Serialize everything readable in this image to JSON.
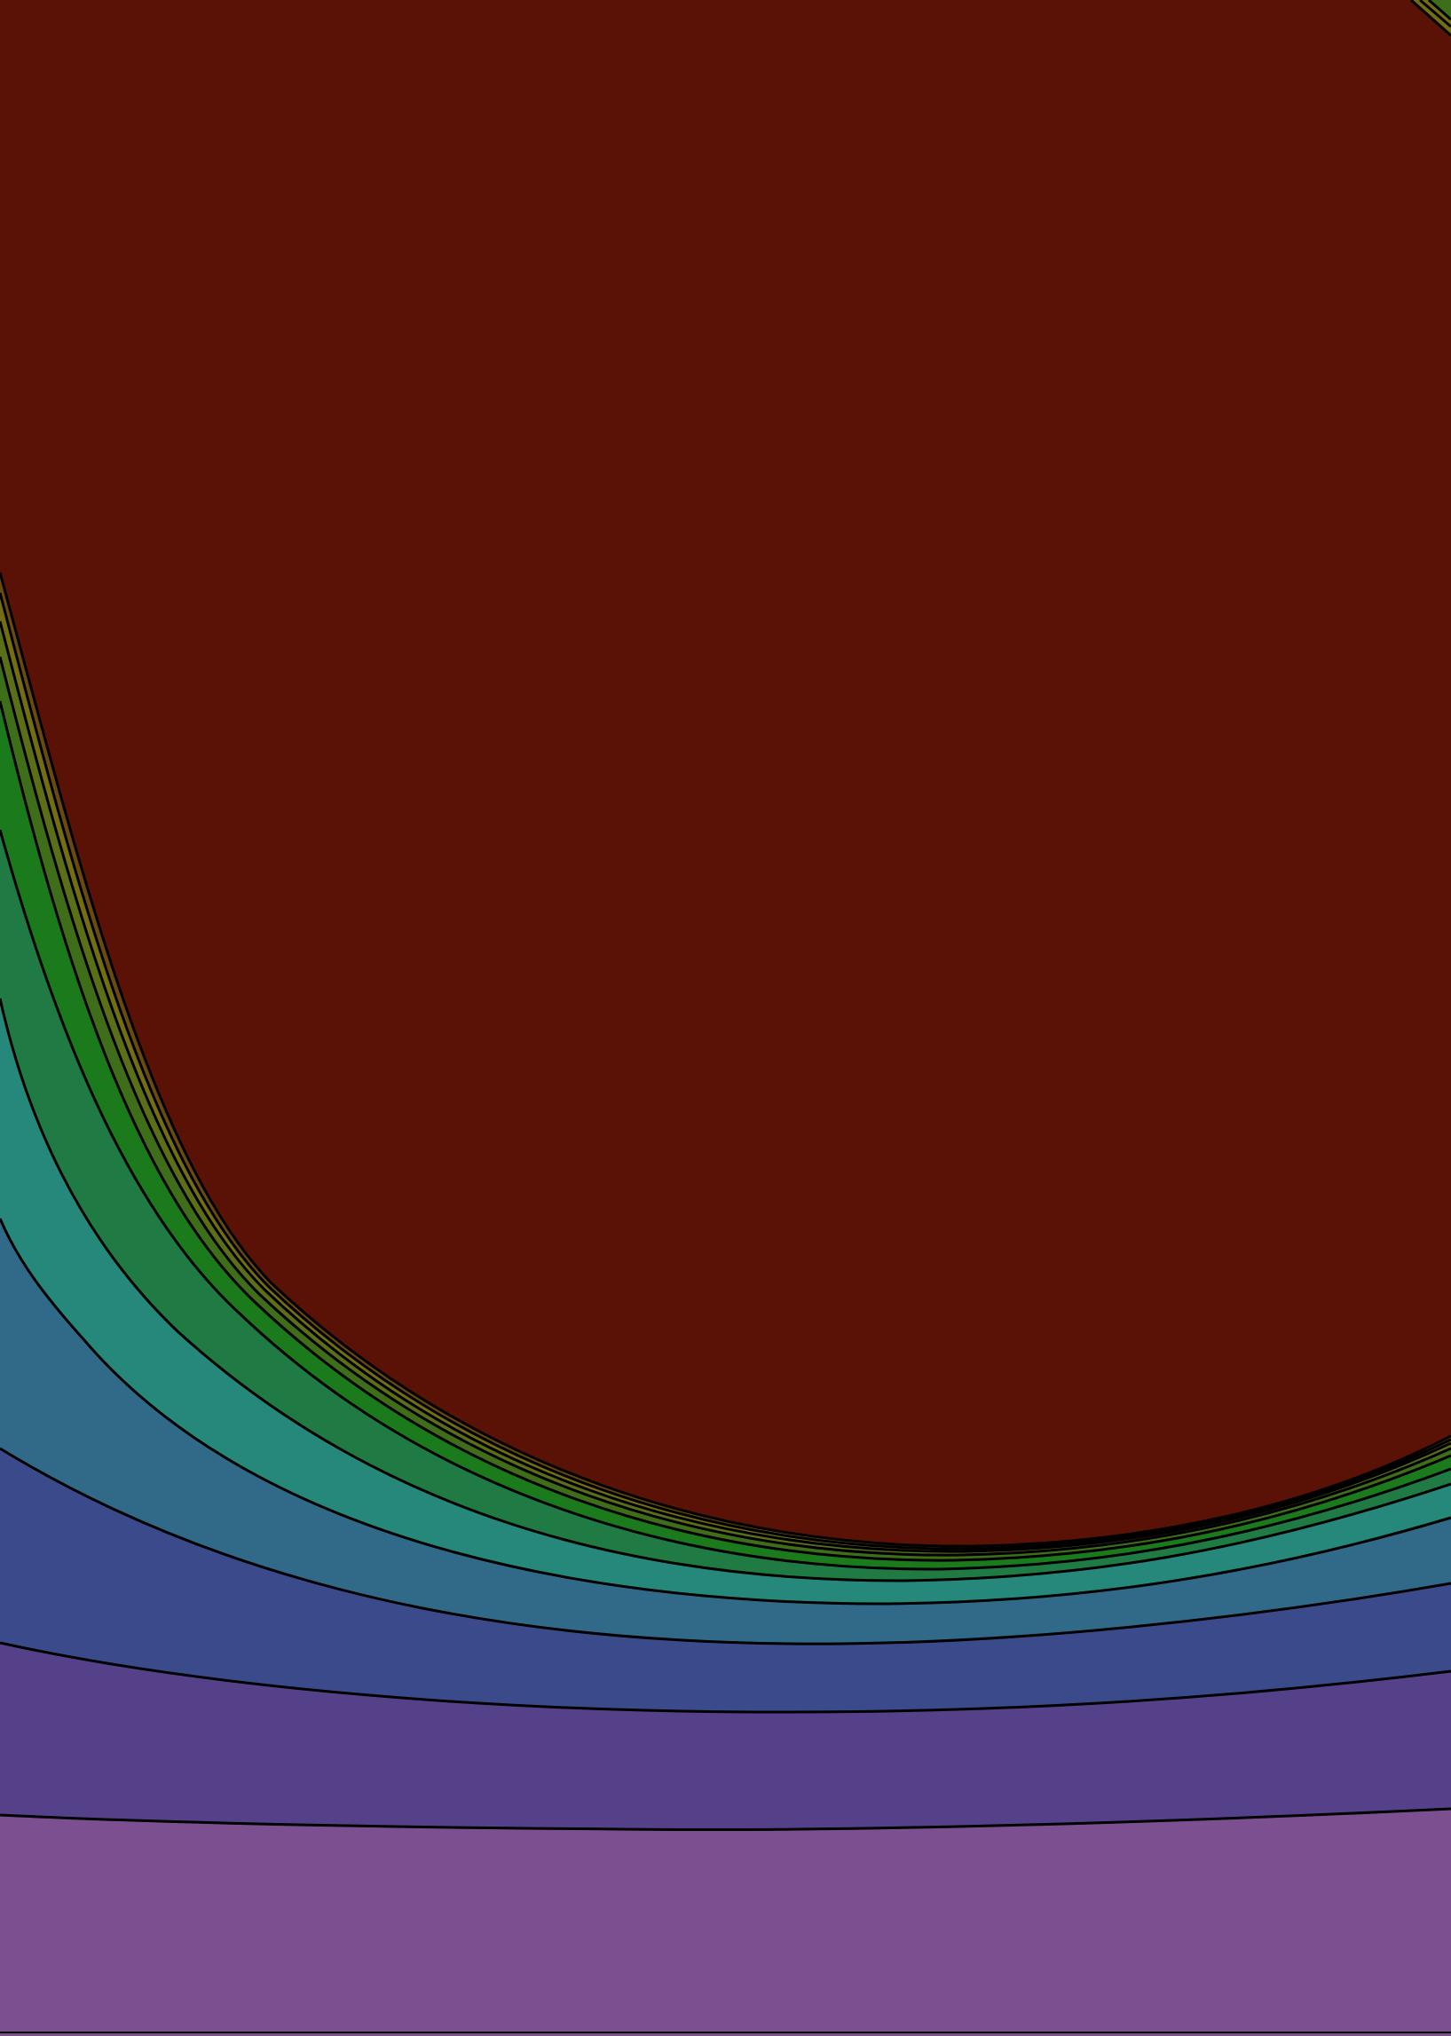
{
  "figure": {
    "kind": "filled contour bands",
    "axes_visible": false,
    "tick_labels_visible": false,
    "text_labels_visible": false,
    "contour_line_color": "#000000",
    "band_count": 12,
    "bands": [
      {
        "name": "band-1",
        "color": "#7b4f90"
      },
      {
        "name": "band-2",
        "color": "#54418a"
      },
      {
        "name": "band-3",
        "color": "#3a4a8a"
      },
      {
        "name": "band-4",
        "color": "#316a88"
      },
      {
        "name": "band-5",
        "color": "#26887a"
      },
      {
        "name": "band-6",
        "color": "#1f7a43"
      },
      {
        "name": "band-7",
        "color": "#1b7a1b"
      },
      {
        "name": "band-8",
        "color": "#3f6e1a"
      },
      {
        "name": "band-9",
        "color": "#5a6f18"
      },
      {
        "name": "band-10",
        "color": "#736e12"
      },
      {
        "name": "band-11",
        "color": "#6a4a0e"
      },
      {
        "name": "core",
        "color": "#5a1206"
      }
    ]
  }
}
